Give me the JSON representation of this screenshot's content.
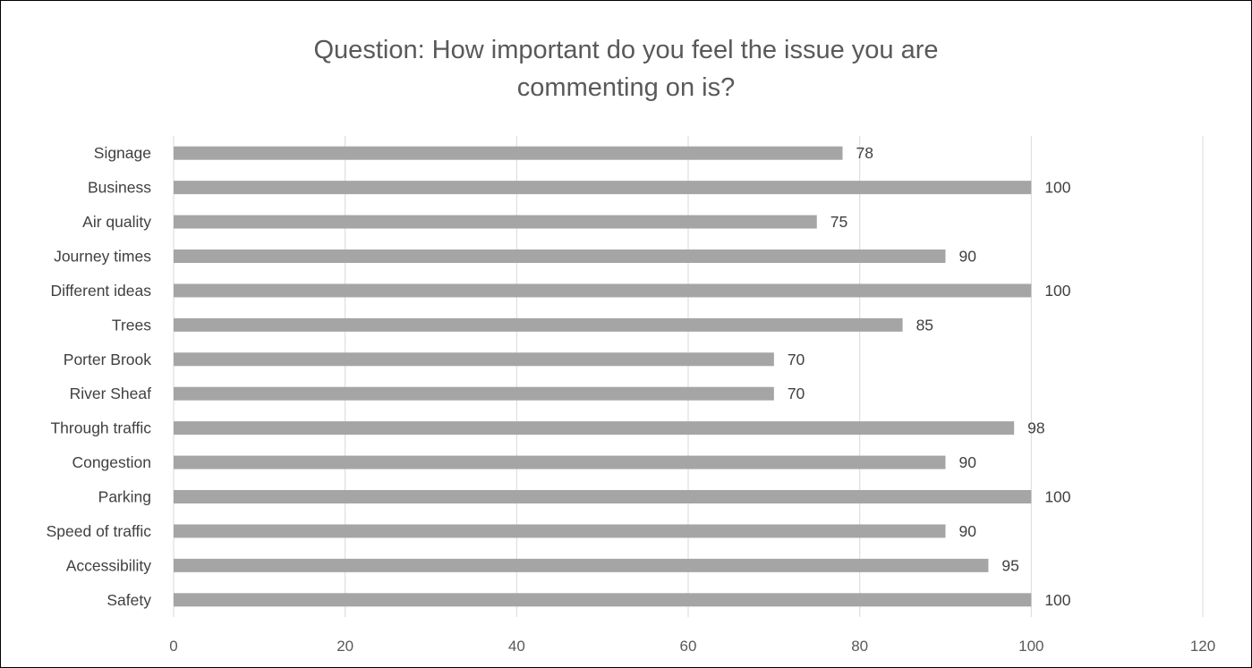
{
  "chart_data": {
    "type": "bar",
    "orientation": "horizontal",
    "title_lines": [
      "Question: How important do you feel the issue you are",
      "commenting on is?"
    ],
    "categories": [
      "Signage",
      "Business",
      "Air quality",
      "Journey times",
      "Different ideas",
      "Trees",
      "Porter Brook",
      "River Sheaf",
      "Through traffic",
      "Congestion",
      "Parking",
      "Speed of traffic",
      "Accessibility",
      "Safety"
    ],
    "values": [
      78,
      100,
      75,
      90,
      100,
      85,
      70,
      70,
      98,
      90,
      100,
      90,
      95,
      100
    ],
    "xlim": [
      0,
      120
    ],
    "xticks": [
      0,
      20,
      40,
      60,
      80,
      100,
      120
    ],
    "grid": "vertical",
    "data_labels": true,
    "bar_color": "#a5a5a5",
    "grid_color": "#d9d9d9",
    "legend": "none"
  }
}
